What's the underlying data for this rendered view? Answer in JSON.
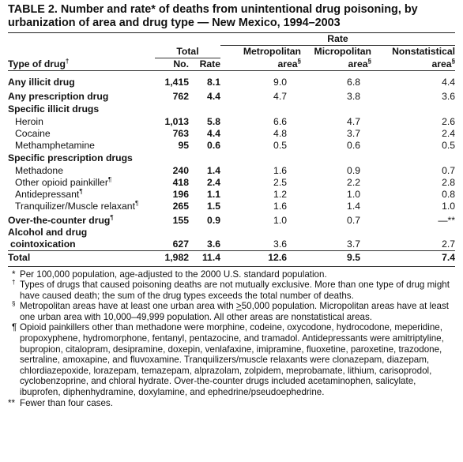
{
  "title": {
    "line1": "TABLE 2. Number and rate* of deaths from unintentional drug poisoning, by",
    "line2": "urbanization of area and drug type — New Mexico, 1994–2003"
  },
  "header": {
    "rate_group": "Rate",
    "total_group": "Total",
    "type_of_drug": "Type of drug",
    "type_mark": "†",
    "no": "No.",
    "rate": "Rate",
    "metro_line1": "Metropolitan",
    "metro_line2": "area",
    "micro_line1": "Micropolitan",
    "micro_line2": "area",
    "nonstat_line1": "Nonstatistical",
    "nonstat_line2": "area",
    "area_mark": "§"
  },
  "rows": [
    {
      "label": "Any illicit drug",
      "no": "1,415",
      "rate": "8.1",
      "metro": "9.0",
      "micro": "6.8",
      "non": "4.4"
    },
    {
      "label": "Any prescription drug",
      "no": "762",
      "rate": "4.4",
      "metro": "4.7",
      "micro": "3.8",
      "non": "3.6"
    },
    {
      "section": "Specific illicit drugs"
    },
    {
      "label": "Heroin",
      "no": "1,013",
      "rate": "5.8",
      "metro": "6.6",
      "micro": "4.7",
      "non": "2.6"
    },
    {
      "label": "Cocaine",
      "no": "763",
      "rate": "4.4",
      "metro": "4.8",
      "micro": "3.7",
      "non": "2.4"
    },
    {
      "label": "Methamphetamine",
      "no": "95",
      "rate": "0.6",
      "metro": "0.5",
      "micro": "0.6",
      "non": "0.5"
    },
    {
      "section": "Specific prescription drugs"
    },
    {
      "label": "Methadone",
      "no": "240",
      "rate": "1.4",
      "metro": "1.6",
      "micro": "0.9",
      "non": "0.7"
    },
    {
      "label": "Other opioid painkiller",
      "mark": "¶",
      "no": "418",
      "rate": "2.4",
      "metro": "2.5",
      "micro": "2.2",
      "non": "2.8"
    },
    {
      "label": "Antidepressant",
      "mark": "¶",
      "no": "196",
      "rate": "1.1",
      "metro": "1.2",
      "micro": "1.0",
      "non": "0.8"
    },
    {
      "label": "Tranquilizer/Muscle relaxant",
      "mark": "¶",
      "no": "265",
      "rate": "1.5",
      "metro": "1.6",
      "micro": "1.4",
      "non": "1.0"
    },
    {
      "label": "Over-the-counter drug",
      "mark": "¶",
      "no": "155",
      "rate": "0.9",
      "metro": "1.0",
      "micro": "0.7",
      "non": "—**"
    },
    {
      "label": "Alcohol and drug",
      "label2": "cointoxication",
      "no": "627",
      "rate": "3.6",
      "metro": "3.6",
      "micro": "3.7",
      "non": "2.7"
    }
  ],
  "total_row": {
    "label": "Total",
    "no": "1,982",
    "rate": "11.4",
    "metro": "12.6",
    "micro": "9.5",
    "non": "7.4"
  },
  "footnotes": {
    "star": {
      "mark": "*",
      "text": "Per 100,000 population, age-adjusted to the 2000 U.S. standard population."
    },
    "dagger": {
      "mark": "†",
      "text": "Types of drugs that caused poisoning deaths are not mutually exclusive. More than one type of drug might have caused death; the sum of the drug types exceeds the total number of deaths."
    },
    "section": {
      "mark": "§",
      "text_a": "Metropolitan areas have at least one urban area with ",
      "geq": ">",
      "text_b": "50,000 population. Micropolitan areas have at least one urban area with 10,000–49,999 population. All other areas are nonstatistical areas."
    },
    "pilcrow": {
      "mark": "¶",
      "text": "Opioid painkillers other than methadone were morphine, codeine, oxycodone, hydrocodone, meperidine, propoxyphene, hydromorphone, fentanyl, pentazocine, and tramadol. Antidepressants were amitriptyline, bupropion, citalopram, desipramine, doxepin, venlafaxine, imipramine, fluoxetine, paroxetine, trazodone, sertraline, amoxapine, and fluvoxamine. Tranquilizers/muscle relaxants were clonazepam, diazepam, chlordiazepoxide, lorazepam, temazepam, alprazolam, zolpidem, meprobamate, lithium, carisoprodol, cyclobenzoprine, and chloral hydrate. Over-the-counter drugs included acetaminophen, salicylate, ibuprofen, diphenhydramine, doxylamine, and ephedrine/pseudoephedrine."
    },
    "dstar": {
      "mark": "**",
      "text": "Fewer than four cases."
    }
  }
}
